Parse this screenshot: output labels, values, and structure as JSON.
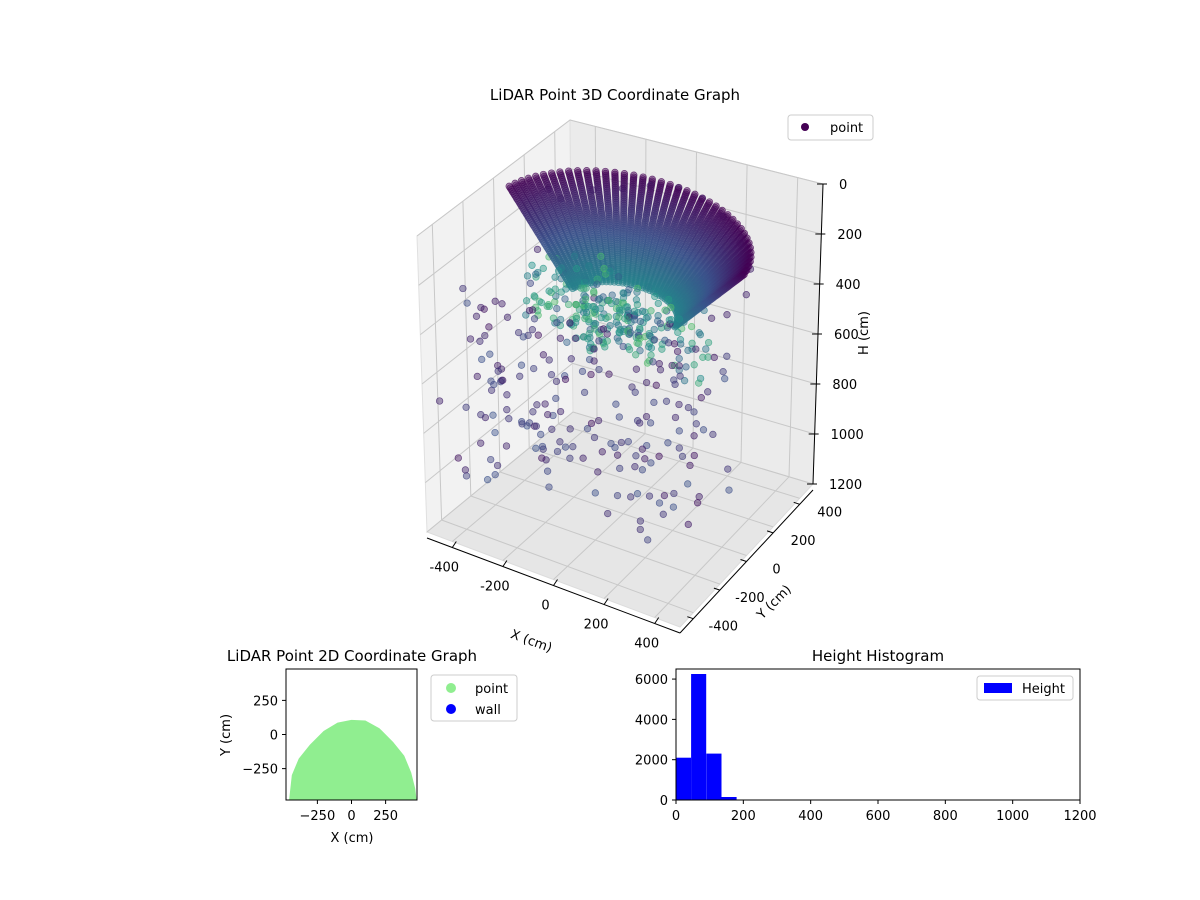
{
  "chart_data": [
    {
      "type": "scatter",
      "projection": "3d",
      "title": "LiDAR Point 3D Coordinate Graph",
      "xlabel": "X (cm)",
      "ylabel": "Y (cm)",
      "zlabel": "H (cm)",
      "xlim": [
        -500,
        500
      ],
      "ylim": [
        -500,
        500
      ],
      "zlim": [
        1200,
        0
      ],
      "x_ticks": [
        "-400",
        "-200",
        "0",
        "200",
        "400"
      ],
      "y_ticks": [
        "-400",
        "-200",
        "0",
        "200",
        "400"
      ],
      "z_ticks": [
        "0",
        "200",
        "400",
        "600",
        "800",
        "1000",
        "1200"
      ],
      "colormap": "viridis",
      "legend": {
        "position": "upper-right",
        "entries": [
          "point"
        ]
      },
      "legend_marker_color": "#440154",
      "series": [
        {
          "name": "point",
          "description_note": "",
          "sample_points": [
            [
              -450,
              300,
              180
            ],
            [
              -400,
              300,
              200
            ],
            [
              -300,
              350,
              150
            ],
            [
              -200,
              380,
              120
            ],
            [
              -100,
              400,
              80
            ],
            [
              0,
              420,
              60
            ],
            [
              100,
              410,
              60
            ],
            [
              200,
              380,
              80
            ],
            [
              300,
              320,
              120
            ],
            [
              380,
              250,
              160
            ],
            [
              420,
              150,
              200
            ],
            [
              400,
              50,
              240
            ],
            [
              -380,
              100,
              300
            ],
            [
              -250,
              50,
              320
            ],
            [
              -100,
              0,
              340
            ],
            [
              50,
              -20,
              350
            ],
            [
              200,
              0,
              330
            ],
            [
              320,
              80,
              300
            ],
            [
              -300,
              -100,
              420
            ],
            [
              -150,
              -150,
              450
            ],
            [
              0,
              -180,
              470
            ],
            [
              150,
              -150,
              460
            ],
            [
              280,
              -80,
              430
            ],
            [
              -450,
              -250,
              520
            ],
            [
              -300,
              -300,
              560
            ],
            [
              -100,
              -350,
              600
            ],
            [
              100,
              -330,
              600
            ],
            [
              250,
              -260,
              560
            ],
            [
              -480,
              -420,
              700
            ],
            [
              -200,
              -450,
              760
            ],
            [
              150,
              -430,
              740
            ],
            [
              -350,
              -480,
              900
            ],
            [
              0,
              -300,
              320
            ],
            [
              -50,
              -250,
              300
            ],
            [
              80,
              -220,
              310
            ]
          ]
        }
      ]
    },
    {
      "type": "scatter",
      "title": "LiDAR Point 2D Coordinate Graph",
      "xlabel": "X (cm)",
      "ylabel": "Y (cm)",
      "xlim": [
        -480,
        480
      ],
      "ylim": [
        -480,
        480
      ],
      "x_ticks": [
        "−250",
        "0",
        "250"
      ],
      "y_ticks": [
        "250",
        "0",
        "−250"
      ],
      "legend": {
        "position": "outside-right",
        "entries": [
          "point",
          "wall"
        ]
      },
      "series": [
        {
          "name": "point",
          "color": "#90ee90",
          "shape": "dome",
          "outline": [
            [
              -450,
              -480
            ],
            [
              -430,
              -300
            ],
            [
              -380,
              -180
            ],
            [
              -300,
              -80
            ],
            [
              -200,
              20
            ],
            [
              -100,
              80
            ],
            [
              0,
              100
            ],
            [
              100,
              95
            ],
            [
              200,
              40
            ],
            [
              300,
              -60
            ],
            [
              380,
              -160
            ],
            [
              430,
              -280
            ],
            [
              460,
              -400
            ],
            [
              470,
              -480
            ]
          ]
        },
        {
          "name": "wall",
          "color": "#0000ff",
          "points": []
        }
      ]
    },
    {
      "type": "bar",
      "subtype": "histogram",
      "title": "Height Histogram",
      "xlabel": "",
      "ylabel": "",
      "xlim": [
        0,
        1200
      ],
      "ylim": [
        0,
        6500
      ],
      "x_ticks": [
        "0",
        "200",
        "400",
        "600",
        "800",
        "1000",
        "1200"
      ],
      "y_ticks": [
        "0",
        "2000",
        "4000",
        "6000"
      ],
      "legend": {
        "position": "upper-right",
        "entries": [
          "Height"
        ]
      },
      "color": "#0000ff",
      "bins": [
        {
          "x0": 0,
          "x1": 45,
          "value": 2100
        },
        {
          "x0": 45,
          "x1": 90,
          "value": 6250
        },
        {
          "x0": 90,
          "x1": 135,
          "value": 2300
        },
        {
          "x0": 135,
          "x1": 180,
          "value": 150
        },
        {
          "x0": 180,
          "x1": 225,
          "value": 5
        }
      ]
    }
  ]
}
